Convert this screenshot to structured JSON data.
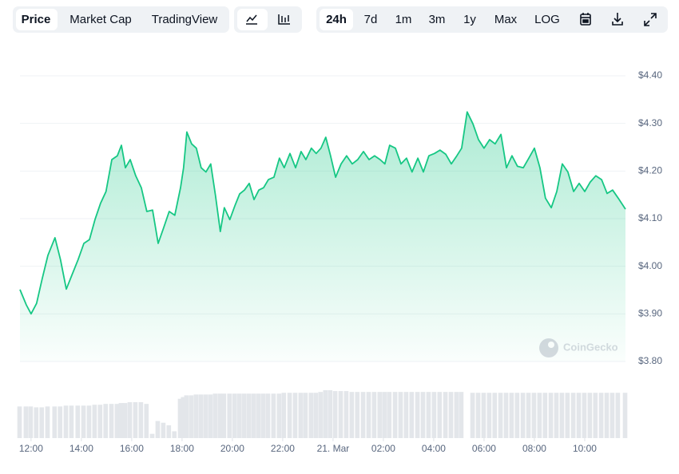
{
  "toolbar": {
    "views": [
      "Price",
      "Market Cap",
      "TradingView"
    ],
    "ranges": [
      "24h",
      "7d",
      "1m",
      "3m",
      "1y",
      "Max",
      "LOG"
    ]
  },
  "watermark": "CoinGecko",
  "chart_data": {
    "type": "area",
    "color": "#16c784",
    "grid": true,
    "x": [
      -0.44,
      -0.19,
      0,
      0.22,
      0.44,
      0.67,
      0.95,
      1.17,
      1.4,
      1.62,
      1.87,
      2.1,
      2.32,
      2.54,
      2.76,
      2.98,
      3.21,
      3.43,
      3.59,
      3.75,
      3.94,
      4.16,
      4.38,
      4.6,
      4.83,
      5.05,
      5.27,
      5.49,
      5.71,
      5.94,
      6.06,
      6.19,
      6.38,
      6.57,
      6.76,
      6.95,
      7.14,
      7.33,
      7.52,
      7.68,
      7.9,
      8.1,
      8.29,
      8.48,
      8.67,
      8.86,
      9.05,
      9.24,
      9.43,
      9.65,
      9.87,
      10.06,
      10.29,
      10.51,
      10.73,
      10.92,
      11.14,
      11.33,
      11.52,
      11.71,
      11.9,
      12.1,
      12.32,
      12.54,
      12.76,
      12.98,
      13.21,
      13.43,
      13.65,
      13.87,
      14.06,
      14.25,
      14.48,
      14.7,
      14.92,
      15.14,
      15.37,
      15.59,
      15.81,
      16.03,
      16.25,
      16.48,
      16.7,
      16.92,
      17.11,
      17.33,
      17.56,
      17.78,
      18,
      18.22,
      18.44,
      18.67,
      18.89,
      19.11,
      19.33,
      19.56,
      19.78,
      20,
      20.22,
      20.44,
      20.67,
      20.89,
      21.11,
      21.33,
      21.56,
      21.78,
      22,
      22.22,
      22.44,
      22.67,
      22.89,
      23.11,
      23.33,
      23.62
    ],
    "values": [
      3.951,
      3.919,
      3.9,
      3.922,
      3.973,
      4.023,
      4.06,
      4.014,
      3.952,
      3.981,
      4.014,
      4.048,
      4.056,
      4.098,
      4.132,
      4.157,
      4.224,
      4.232,
      4.254,
      4.207,
      4.224,
      4.19,
      4.165,
      4.115,
      4.118,
      4.048,
      4.081,
      4.115,
      4.107,
      4.165,
      4.207,
      4.282,
      4.257,
      4.248,
      4.207,
      4.198,
      4.215,
      4.148,
      4.073,
      4.123,
      4.098,
      4.127,
      4.152,
      4.16,
      4.174,
      4.14,
      4.16,
      4.165,
      4.182,
      4.187,
      4.227,
      4.207,
      4.237,
      4.207,
      4.241,
      4.224,
      4.248,
      4.237,
      4.248,
      4.271,
      4.232,
      4.187,
      4.215,
      4.232,
      4.215,
      4.224,
      4.241,
      4.224,
      4.232,
      4.224,
      4.215,
      4.254,
      4.248,
      4.215,
      4.227,
      4.198,
      4.227,
      4.198,
      4.232,
      4.237,
      4.244,
      4.235,
      4.215,
      4.232,
      4.248,
      4.324,
      4.299,
      4.266,
      4.248,
      4.266,
      4.257,
      4.277,
      4.207,
      4.232,
      4.21,
      4.207,
      4.227,
      4.248,
      4.207,
      4.143,
      4.123,
      4.157,
      4.215,
      4.198,
      4.157,
      4.174,
      4.157,
      4.177,
      4.19,
      4.182,
      4.153,
      4.16,
      4.143,
      4.12
    ],
    "volume": [
      37,
      37,
      37,
      36,
      36,
      37,
      37,
      37,
      38,
      38,
      38,
      38,
      38,
      39,
      39,
      40,
      40,
      40,
      41,
      41,
      42,
      42,
      42,
      40,
      5,
      20,
      18,
      15,
      8,
      46,
      48,
      50,
      50,
      51,
      51,
      51,
      51,
      52,
      52,
      52,
      52,
      52,
      52,
      52,
      52,
      52,
      52,
      52,
      52,
      52,
      52,
      53,
      53,
      53,
      53,
      53,
      53,
      53,
      54,
      56,
      56,
      55,
      55,
      55,
      54,
      54,
      54,
      54,
      54,
      54,
      54,
      54,
      54,
      54,
      54,
      54,
      54,
      54,
      54,
      54,
      54,
      54,
      54,
      54,
      54,
      0,
      53,
      53,
      53,
      53,
      53,
      53,
      53,
      53,
      53,
      53,
      53,
      53,
      53,
      53,
      53,
      53,
      53,
      53,
      53,
      53,
      53,
      53,
      53,
      53,
      53,
      53,
      53,
      53
    ],
    "xlim": [
      -0.44,
      23.62
    ],
    "xticks": [
      {
        "value": 0,
        "label": "12:00"
      },
      {
        "value": 2,
        "label": "14:00"
      },
      {
        "value": 4,
        "label": "16:00"
      },
      {
        "value": 6,
        "label": "18:00"
      },
      {
        "value": 8,
        "label": "20:00"
      },
      {
        "value": 10,
        "label": "22:00"
      },
      {
        "value": 12,
        "label": "21. Mar"
      },
      {
        "value": 14,
        "label": "02:00"
      },
      {
        "value": 16,
        "label": "04:00"
      },
      {
        "value": 18,
        "label": "06:00"
      },
      {
        "value": 20,
        "label": "08:00"
      },
      {
        "value": 22,
        "label": "10:00"
      }
    ],
    "ylim": [
      3.8,
      4.4
    ],
    "yticks": [
      {
        "value": 3.8,
        "label": "$3.80"
      },
      {
        "value": 3.9,
        "label": "$3.90"
      },
      {
        "value": 4.0,
        "label": "$4.00"
      },
      {
        "value": 4.1,
        "label": "$4.10"
      },
      {
        "value": 4.2,
        "label": "$4.20"
      },
      {
        "value": 4.3,
        "label": "$4.30"
      },
      {
        "value": 4.4,
        "label": "$4.40"
      }
    ]
  }
}
